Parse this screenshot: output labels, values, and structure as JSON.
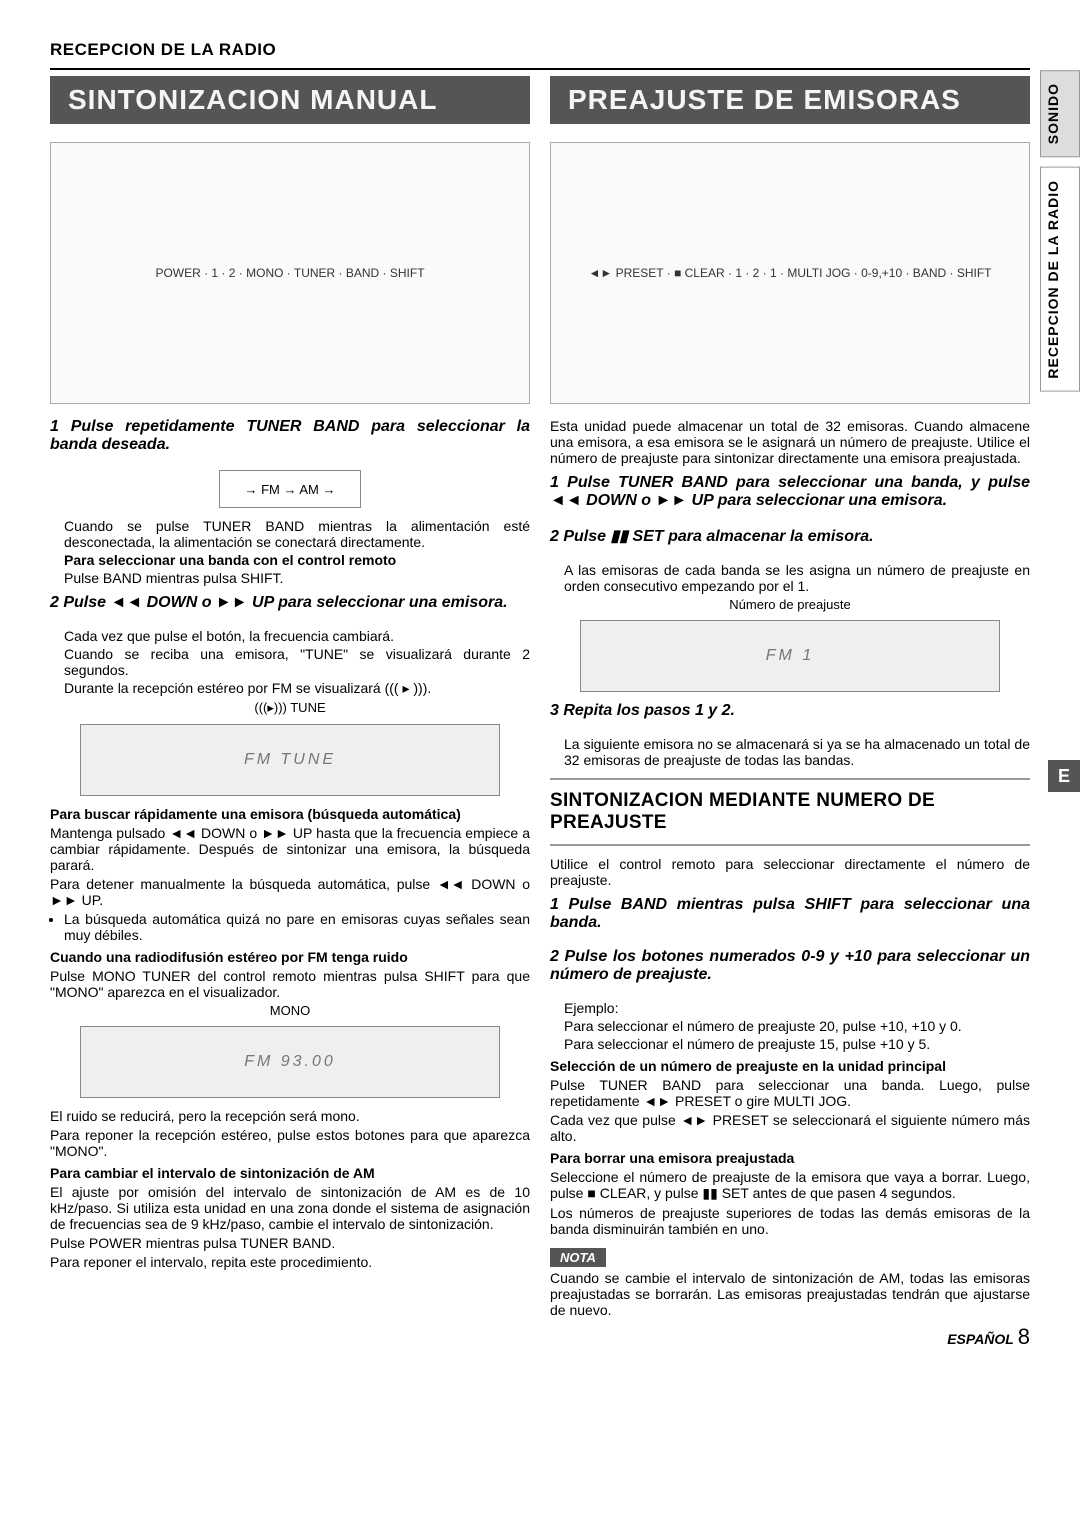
{
  "header": "RECEPCION DE LA RADIO",
  "side_tabs": [
    "SONIDO",
    "RECEPCION DE LA RADIO"
  ],
  "e_marker": "E",
  "footer_lang": "ESPAÑOL",
  "footer_page": "8",
  "left": {
    "banner": "SINTONIZACION MANUAL",
    "diagram_labels": "POWER · 1 · 2 · MONO · TUNER · BAND · SHIFT",
    "step1": "1 Pulse repetidamente TUNER BAND para seleccionar la banda deseada.",
    "fm_am": "→ FM → AM →",
    "s1a": "Cuando se pulse TUNER BAND mientras la alimentación esté desconectada, la alimentación se conectará directamente.",
    "s1b_h": "Para seleccionar una banda con el control remoto",
    "s1b": "Pulse BAND mientras pulsa SHIFT.",
    "step2": "2 Pulse ◄◄ DOWN o ►► UP para seleccionar una emisora.",
    "s2a": "Cada vez que pulse el botón, la frecuencia cambiará.",
    "s2b": "Cuando se reciba una emisora, \"TUNE\" se visualizará durante 2 segundos.",
    "s2c": "Durante la recepción estéreo por FM se visualizará ((( ▸ ))).",
    "disp1_caption": "(((▸)))        TUNE",
    "disp1": "FM   TUNE",
    "auto_h": "Para buscar rápidamente una emisora (búsqueda automática)",
    "auto1": "Mantenga pulsado ◄◄ DOWN o ►► UP hasta que la frecuencia empiece a cambiar rápidamente. Después de sintonizar una emisora, la búsqueda parará.",
    "auto2": "Para detener manualmente la búsqueda automática, pulse ◄◄ DOWN o ►► UP.",
    "auto_li": "La búsqueda automática quizá no pare en emisoras cuyas señales sean muy débiles.",
    "fm_noise_h": "Cuando una radiodifusión estéreo por FM tenga ruido",
    "fm_noise": "Pulse MONO TUNER del control remoto mientras pulsa SHIFT para que \"MONO\" aparezca en el visualizador.",
    "disp2_caption": "MONO",
    "disp2": "FM  93.00",
    "noise2": "El ruido se reducirá, pero la recepción será mono.",
    "noise3": "Para reponer la recepción estéreo, pulse estos botones para que aparezca \"MONO\".",
    "am_h": "Para cambiar el intervalo de sintonización de AM",
    "am1": "El ajuste por omisión del intervalo de sintonización de AM es de 10 kHz/paso. Si utiliza esta unidad en una zona donde el sistema de asignación de frecuencias sea de 9 kHz/paso, cambie el intervalo de sintonización.",
    "am2": "Pulse POWER mientras pulsa TUNER BAND.",
    "am3": "Para reponer el intervalo, repita este procedimiento."
  },
  "right": {
    "banner": "PREAJUSTE DE EMISORAS",
    "diagram_labels": "◄► PRESET · ■ CLEAR · 1 · 2 · 1 · MULTI JOG · 0-9,+10 · BAND · SHIFT",
    "intro": "Esta unidad puede almacenar un total de 32 emisoras. Cuando almacene una emisora, a esa emisora se le asignará un número de preajuste. Utilice el número de preajuste para sintonizar directamente una emisora preajustada.",
    "step1": "1 Pulse TUNER BAND para seleccionar una banda, y pulse ◄◄ DOWN o ►► UP para seleccionar una emisora.",
    "step2": "2 Pulse ▮▮ SET para almacenar la emisora.",
    "s2a": "A las emisoras de cada banda se les asigna un número de preajuste en orden consecutivo empezando por el 1.",
    "disp_caption": "Número de preajuste",
    "disp": "FM   1",
    "step3": "3 Repita los pasos 1 y 2.",
    "s3a": "La siguiente emisora no se almacenará si ya se ha almacenado un total de 32 emisoras de preajuste de todas las bandas.",
    "h2": "SINTONIZACION MEDIANTE NUMERO DE PREAJUSTE",
    "h2_intro": "Utilice el control remoto para seleccionar directamente el número de preajuste.",
    "p1": "1 Pulse BAND mientras pulsa SHIFT para seleccionar una banda.",
    "p2": "2 Pulse los botones numerados 0-9 y +10 para seleccionar un número de preajuste.",
    "p2_ex_h": "Ejemplo:",
    "p2_ex1": "Para seleccionar el número de preajuste 20, pulse +10, +10 y 0.",
    "p2_ex2": "Para seleccionar el número de preajuste 15, pulse +10 y 5.",
    "sel_h": "Selección de un número de preajuste en la unidad principal",
    "sel1": "Pulse TUNER BAND para seleccionar una banda. Luego, pulse repetidamente ◄► PRESET o gire MULTI JOG.",
    "sel2": "Cada vez que pulse ◄► PRESET se seleccionará el siguiente número más alto.",
    "del_h": "Para borrar una emisora preajustada",
    "del1": "Seleccione el número de preajuste de la emisora que vaya a borrar. Luego, pulse ■ CLEAR, y pulse ▮▮ SET antes de que pasen 4 segundos.",
    "del2": "Los números de preajuste superiores de todas las demás emisoras de la banda disminuirán también en uno.",
    "nota_label": "NOTA",
    "nota": "Cuando se cambie el intervalo de sintonización de AM, todas las emisoras preajustadas se borrarán. Las emisoras preajustadas tendrán que ajustarse de nuevo."
  }
}
